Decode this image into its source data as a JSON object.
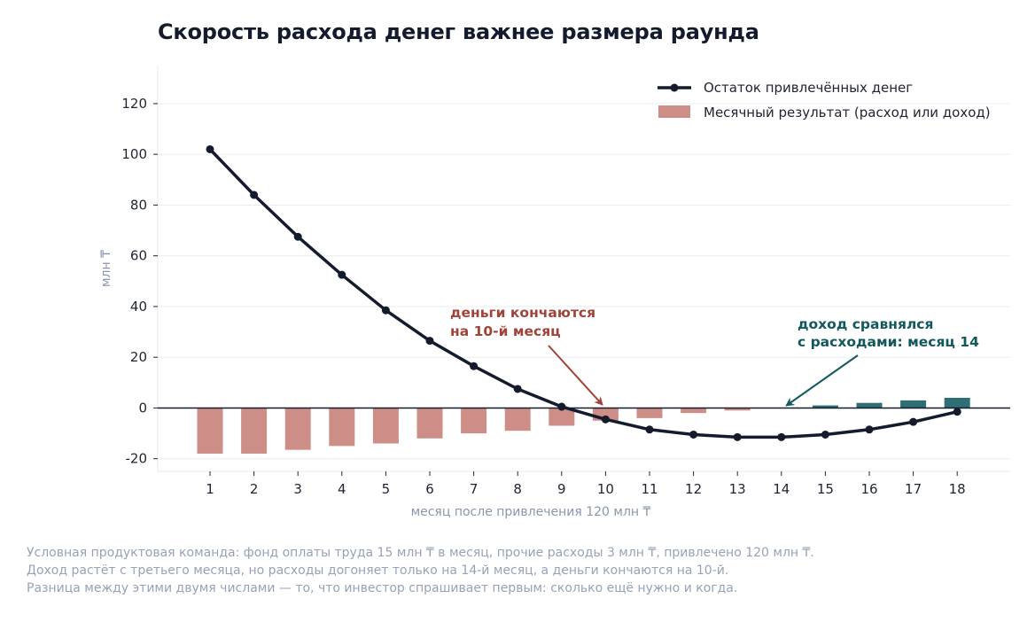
{
  "title": "Скорость расхода денег важнее размера раунда",
  "footnote": [
    "Условная продуктовая команда: фонд оплаты труда 15 млн ₸ в месяц, прочие расходы 3 млн ₸, привлечено 120 млн ₸.",
    "Доход растёт с третьего месяца, но расходы догоняет только на 14-й месяц, а деньги кончаются на 10-й.",
    "Разница между этими двумя числами — то, что инвестор спрашивает первым: сколько ещё нужно и когда."
  ],
  "chart_data": {
    "type": "bar+line",
    "title": "Скорость расхода денег важнее размера раунда",
    "xlabel": "месяц после привлечения 120 млн ₸",
    "ylabel": "млн ₸",
    "categories": [
      1,
      2,
      3,
      4,
      5,
      6,
      7,
      8,
      9,
      10,
      11,
      12,
      13,
      14,
      15,
      16,
      17,
      18
    ],
    "series": [
      {
        "name": "Остаток привлечённых денег",
        "type": "line",
        "color": "#141b2d",
        "values": [
          102,
          84,
          67.5,
          52.5,
          38.5,
          26.5,
          16.5,
          7.5,
          0.5,
          -4.5,
          -8.5,
          -10.5,
          -11.5,
          -11.5,
          -10.5,
          -8.5,
          -5.5,
          -1.5
        ]
      },
      {
        "name": "Месячный результат (расход или доход)",
        "type": "bar",
        "color_negative": "#cc8e87",
        "color_positive": "#2e6e74",
        "values": [
          -18,
          -18,
          -16.5,
          -15,
          -14,
          -12,
          -10,
          -9,
          -7,
          -5,
          -4,
          -2,
          -1,
          0,
          1,
          2,
          3,
          4
        ]
      }
    ],
    "ylim": [
      -25,
      135
    ],
    "yticks": [
      -20,
      0,
      20,
      40,
      60,
      80,
      100,
      120
    ],
    "grid": "horizontal",
    "legend_position": "top-right",
    "annotations": [
      {
        "lines": [
          "деньги кончаются",
          "на 10-й месяц"
        ],
        "color": "#a0443a",
        "points_to": {
          "x": 10,
          "y": 0
        }
      },
      {
        "lines": [
          "доход сравнялся",
          "с расходами: месяц 14"
        ],
        "color": "#12585d",
        "points_to": {
          "x": 14,
          "y": 0
        }
      }
    ]
  }
}
